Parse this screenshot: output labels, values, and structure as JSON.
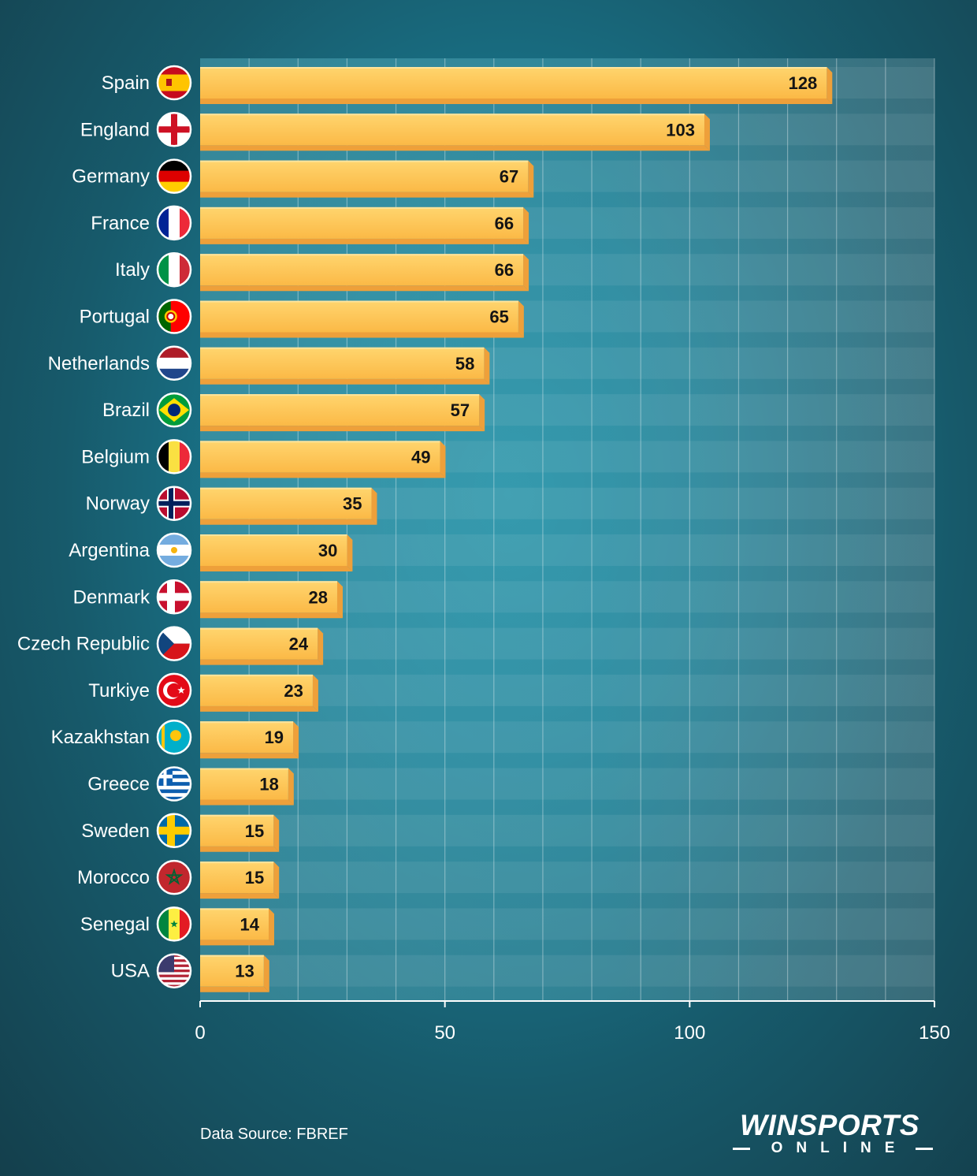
{
  "chart_data": {
    "type": "bar",
    "orientation": "horizontal",
    "title": "",
    "xlabel": "",
    "ylabel": "",
    "categories": [
      "Spain",
      "England",
      "Germany",
      "France",
      "Italy",
      "Portugal",
      "Netherlands",
      "Brazil",
      "Belgium",
      "Norway",
      "Argentina",
      "Denmark",
      "Czech Republic",
      "Turkiye",
      "Kazakhstan",
      "Greece",
      "Sweden",
      "Morocco",
      "Senegal",
      "USA"
    ],
    "values": [
      128,
      103,
      67,
      66,
      66,
      65,
      58,
      57,
      49,
      35,
      30,
      28,
      24,
      23,
      19,
      18,
      15,
      15,
      14,
      13
    ],
    "xlim": [
      0,
      150
    ],
    "xticks": [
      0,
      50,
      100,
      150
    ],
    "grid": true,
    "legend": "none",
    "bar_color": "#fcc24c",
    "bar_shadow_color": "#eea03a"
  },
  "flags": [
    "spain-flag-icon",
    "england-flag-icon",
    "germany-flag-icon",
    "france-flag-icon",
    "italy-flag-icon",
    "portugal-flag-icon",
    "netherlands-flag-icon",
    "brazil-flag-icon",
    "belgium-flag-icon",
    "norway-flag-icon",
    "argentina-flag-icon",
    "denmark-flag-icon",
    "czech-republic-flag-icon",
    "turkiye-flag-icon",
    "kazakhstan-flag-icon",
    "greece-flag-icon",
    "sweden-flag-icon",
    "morocco-flag-icon",
    "senegal-flag-icon",
    "usa-flag-icon"
  ],
  "footer": {
    "source": "Data Source: FBREF",
    "logo_main": "WINSPORTS",
    "logo_sub": "ONLINE"
  }
}
